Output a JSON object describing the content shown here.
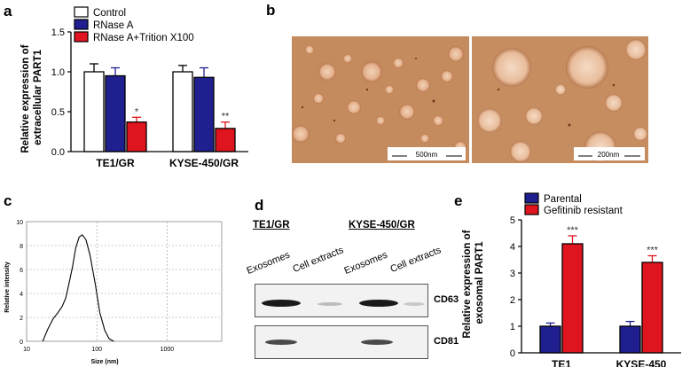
{
  "panels": {
    "a": {
      "letter": "a",
      "ylabel_line1": "Relative expression of",
      "ylabel_line2": "extracellular PART1"
    },
    "b": {
      "letter": "b",
      "scale_left": "500nm",
      "scale_right": "200nm"
    },
    "c": {
      "letter": "c",
      "xlabel": "Size (nm)",
      "ylabel": "Relative intensity"
    },
    "d": {
      "letter": "d",
      "groups": [
        "TE1/GR",
        "KYSE-450/GR"
      ],
      "lanes": [
        "Exosomes",
        "Cell extracts",
        "Exosomes",
        "Cell extracts"
      ],
      "blots": [
        "CD63",
        "CD81"
      ]
    },
    "e": {
      "letter": "e",
      "ylabel_line1": "Relative expression of",
      "ylabel_line2": "exosomal PART1"
    }
  },
  "chart_data": [
    {
      "panel": "a",
      "type": "bar",
      "categories": [
        "TE1/GR",
        "KYSE-450/GR"
      ],
      "series": [
        {
          "name": "Control",
          "values": [
            1.0,
            1.0
          ],
          "errors": [
            0.1,
            0.08
          ],
          "color": "#ffffff"
        },
        {
          "name": "RNase A",
          "values": [
            0.95,
            0.93
          ],
          "errors": [
            0.1,
            0.12
          ],
          "color": "#1f1f8f"
        },
        {
          "name": "RNase A+Trition X100",
          "values": [
            0.37,
            0.29
          ],
          "errors": [
            0.06,
            0.08
          ],
          "color": "#e0141e"
        }
      ],
      "significance": [
        "*",
        "**"
      ],
      "ylim": [
        0.0,
        1.5
      ],
      "yticks": [
        "0.0",
        "0.5",
        "1.0",
        "1.5"
      ],
      "legend_position": "top"
    },
    {
      "panel": "c",
      "type": "line",
      "x_scale": "log",
      "xticks": [
        "10",
        "100",
        "1000"
      ],
      "yticks": [
        "0",
        "2",
        "4",
        "6",
        "8",
        "10"
      ],
      "xlabel": "Size (nm)",
      "ylabel": "Relative intensity",
      "xlim": [
        10,
        6000
      ],
      "ylim": [
        0,
        10
      ],
      "grid": true,
      "x": [
        17,
        20,
        24,
        28,
        32,
        36,
        40,
        45,
        50,
        56,
        62,
        70,
        80,
        95,
        110,
        130,
        150,
        175
      ],
      "y": [
        0,
        1.0,
        1.9,
        2.4,
        2.9,
        3.6,
        4.8,
        6.2,
        7.8,
        8.7,
        8.9,
        8.5,
        7.2,
        4.8,
        2.4,
        0.9,
        0.2,
        0
      ]
    },
    {
      "panel": "e",
      "type": "bar",
      "categories": [
        "TE1",
        "KYSE-450"
      ],
      "series": [
        {
          "name": "Parental",
          "values": [
            1.0,
            1.0
          ],
          "errors": [
            0.12,
            0.18
          ],
          "color": "#1f1f8f"
        },
        {
          "name": "Gefitinib resistant",
          "values": [
            4.1,
            3.4
          ],
          "errors": [
            0.3,
            0.25
          ],
          "color": "#e0141e"
        }
      ],
      "significance": [
        "***",
        "***"
      ],
      "ylim": [
        0,
        5
      ],
      "yticks": [
        "0",
        "1",
        "2",
        "3",
        "4",
        "5"
      ],
      "legend_position": "top"
    }
  ]
}
